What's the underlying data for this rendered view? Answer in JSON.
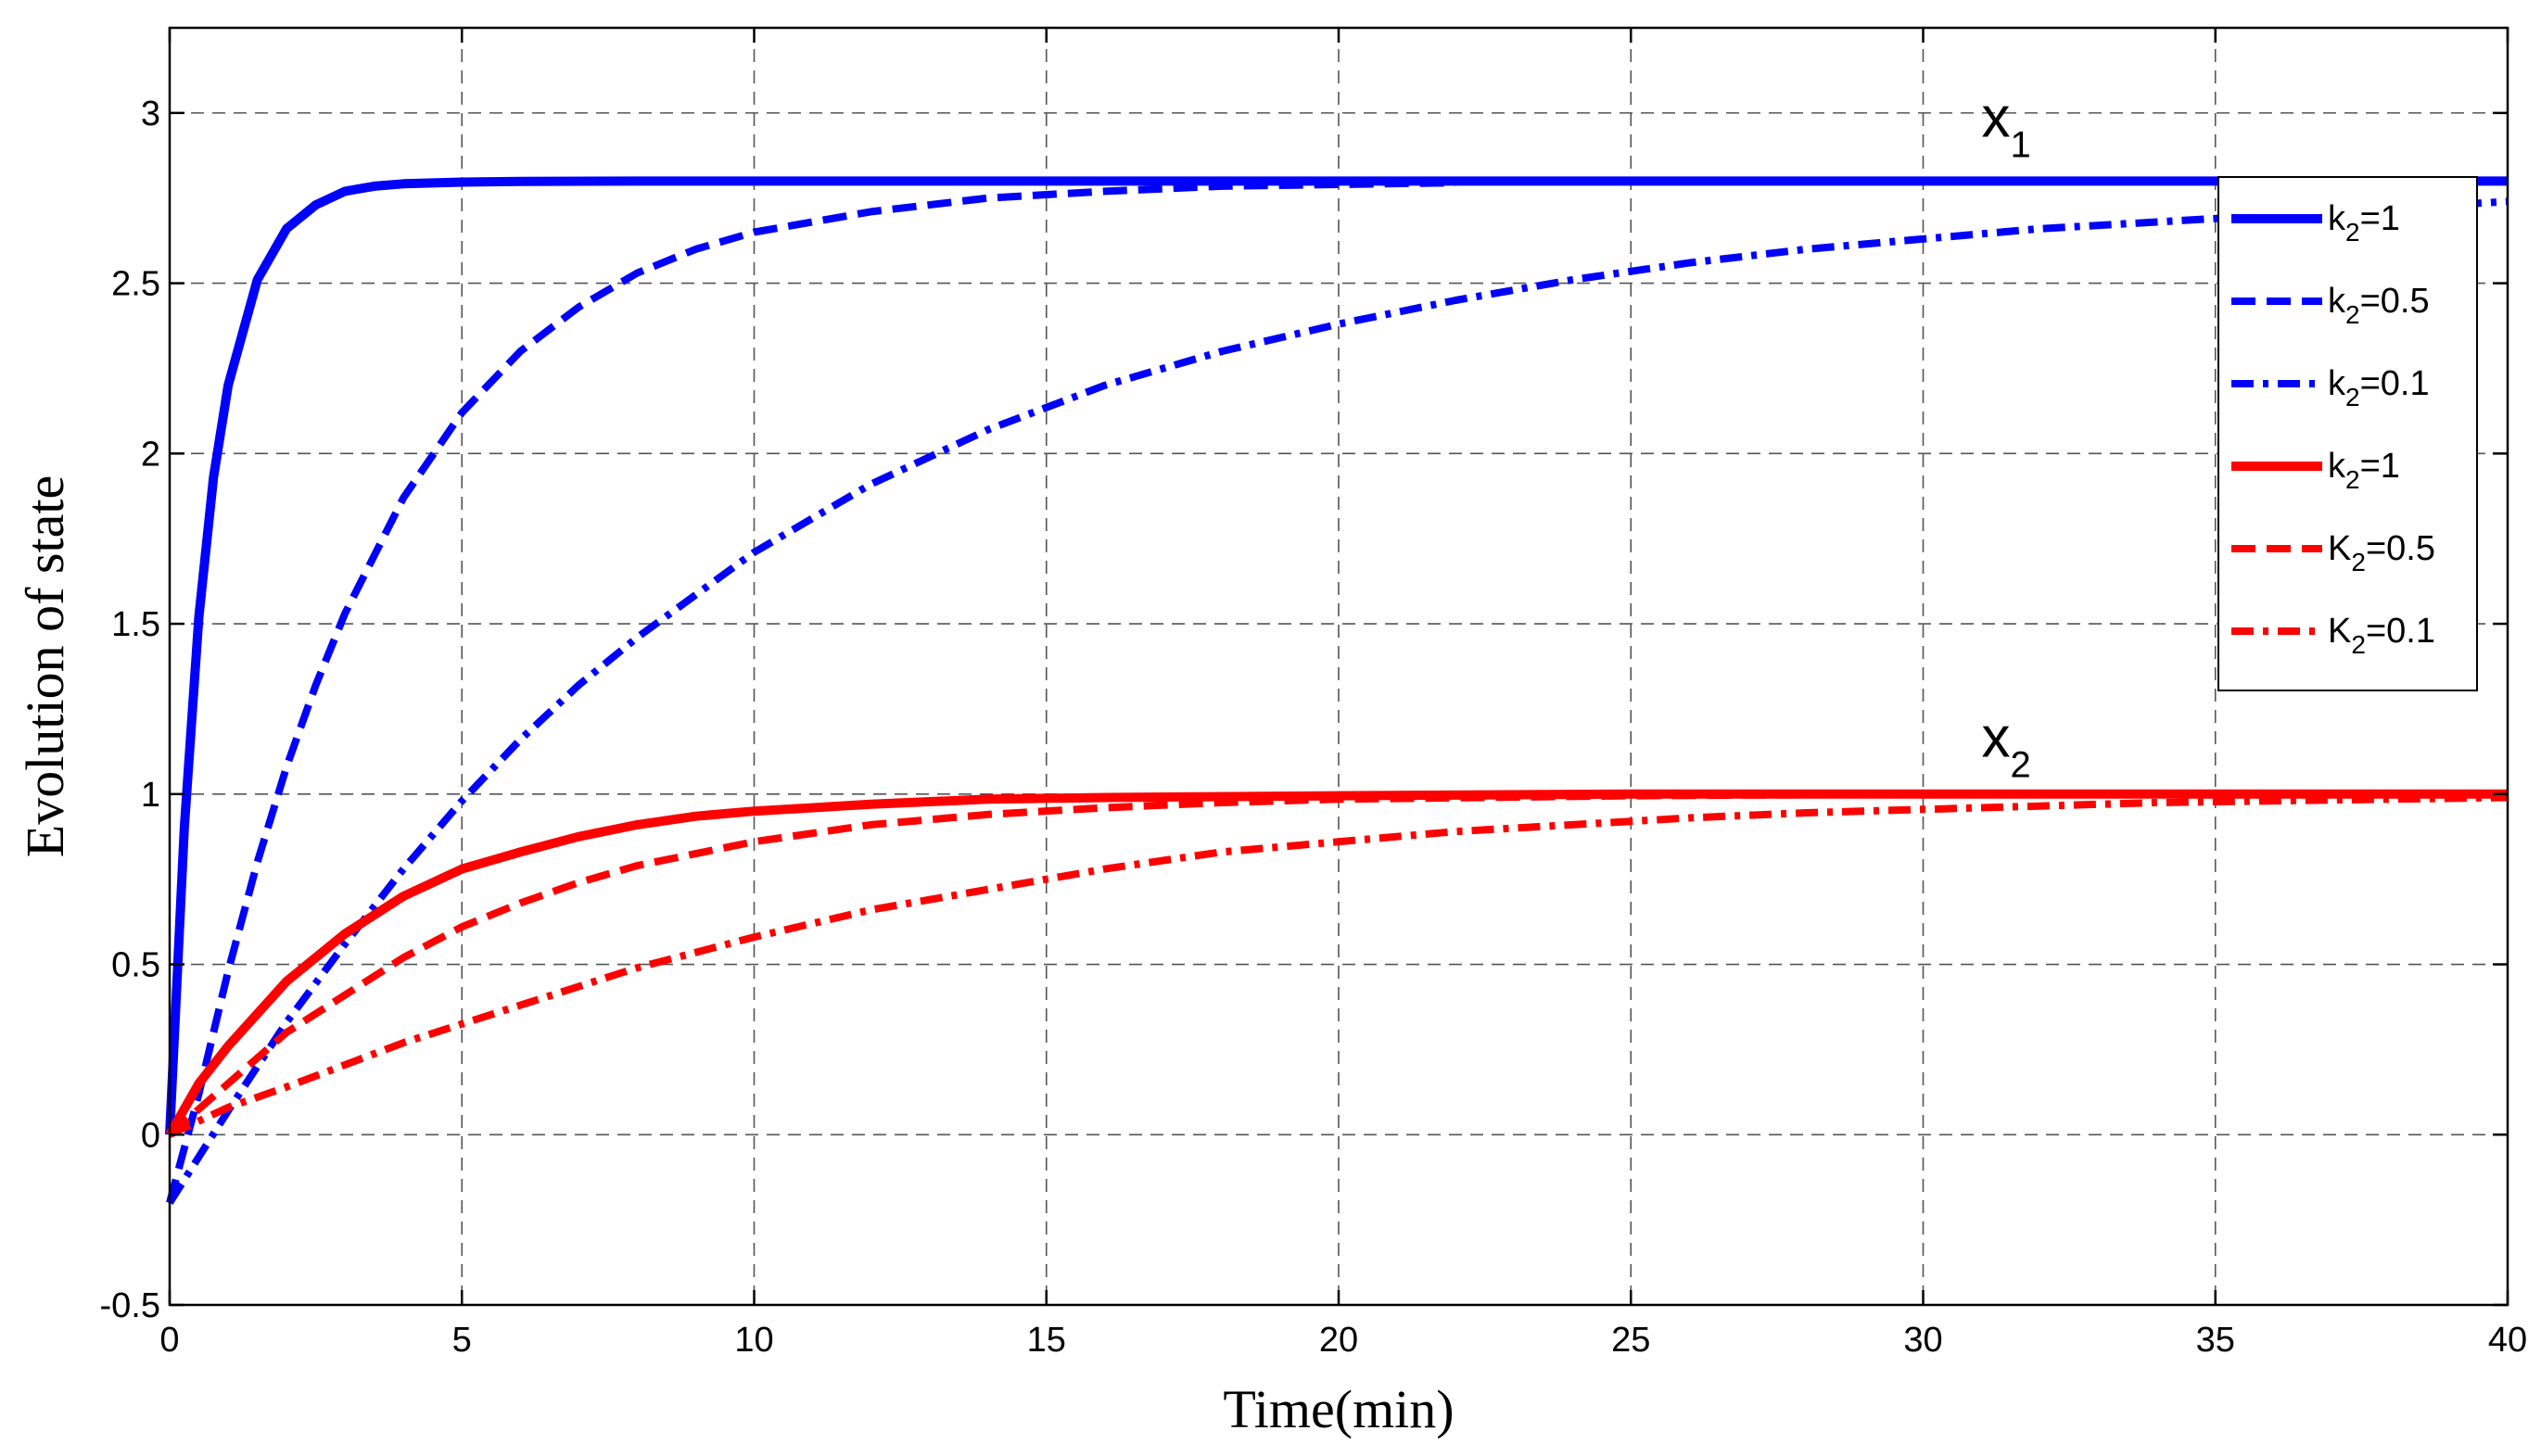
{
  "chart_data": {
    "type": "line",
    "title": "",
    "xlabel": "Time(min)",
    "ylabel": "Evolution of state",
    "xlim": [
      0,
      40
    ],
    "ylim": [
      -0.5,
      3.25
    ],
    "xticks": [
      0,
      5,
      10,
      15,
      20,
      25,
      30,
      35,
      40
    ],
    "xtick_labels": [
      "0",
      "5",
      "10",
      "15",
      "20",
      "25",
      "30",
      "35",
      "40"
    ],
    "yticks": [
      -0.5,
      0,
      0.5,
      1,
      1.5,
      2,
      2.5,
      3
    ],
    "ytick_labels": [
      "-0.5",
      "0",
      "0.5",
      "1",
      "1.5",
      "2",
      "2.5",
      "3"
    ],
    "grid": true,
    "legend_position": "top-right",
    "annotations": [
      {
        "base": "x",
        "sub": "1",
        "x": 31.0,
        "y": 2.93
      },
      {
        "base": "x",
        "sub": "2",
        "x": 31.0,
        "y": 1.11
      }
    ],
    "series": [
      {
        "name_base": "k",
        "name_sub": "2",
        "name_rest": "=1",
        "color": "#0000ff",
        "dash": "solid",
        "x": [
          0,
          0.25,
          0.5,
          0.75,
          1,
          1.5,
          2,
          2.5,
          3,
          3.5,
          4,
          5,
          6,
          8,
          10,
          15,
          20,
          25,
          30,
          35,
          40
        ],
        "y": [
          0,
          0.9,
          1.52,
          1.93,
          2.2,
          2.51,
          2.66,
          2.73,
          2.77,
          2.785,
          2.792,
          2.797,
          2.799,
          2.8,
          2.8,
          2.8,
          2.8,
          2.8,
          2.8,
          2.8,
          2.8
        ]
      },
      {
        "name_base": "k",
        "name_sub": "2",
        "name_rest": "=0.5",
        "color": "#0000ff",
        "dash": "dash",
        "x": [
          0,
          0.5,
          1,
          1.5,
          2,
          2.5,
          3,
          4,
          5,
          6,
          7,
          8,
          9,
          10,
          12,
          14,
          16,
          18,
          20,
          22
        ],
        "y": [
          -0.2,
          0.12,
          0.48,
          0.8,
          1.08,
          1.32,
          1.53,
          1.87,
          2.12,
          2.3,
          2.43,
          2.53,
          2.6,
          2.65,
          2.71,
          2.75,
          2.77,
          2.785,
          2.79,
          2.795
        ]
      },
      {
        "name_base": "k",
        "name_sub": "2",
        "name_rest": "=0.1",
        "color": "#0000ff",
        "dash": "dashdot",
        "x": [
          0,
          1,
          2,
          3,
          4,
          5,
          6,
          7,
          8,
          10,
          12,
          14,
          16,
          18,
          20,
          22,
          24,
          26,
          28,
          30,
          32,
          34,
          36,
          38,
          40
        ],
        "y": [
          -0.2,
          0.07,
          0.33,
          0.56,
          0.78,
          0.98,
          1.16,
          1.32,
          1.46,
          1.71,
          1.91,
          2.07,
          2.2,
          2.3,
          2.38,
          2.45,
          2.51,
          2.56,
          2.6,
          2.63,
          2.66,
          2.68,
          2.7,
          2.72,
          2.74
        ]
      },
      {
        "name_base": "k",
        "name_sub": "2",
        "name_rest": "=1",
        "color": "#ff0000",
        "dash": "solid",
        "x": [
          0,
          0.5,
          1,
          2,
          3,
          4,
          5,
          6,
          7,
          8,
          9,
          10,
          12,
          14,
          16,
          20,
          25,
          30,
          35,
          40
        ],
        "y": [
          0,
          0.15,
          0.26,
          0.45,
          0.59,
          0.7,
          0.78,
          0.83,
          0.875,
          0.91,
          0.935,
          0.95,
          0.97,
          0.985,
          0.99,
          0.995,
          1.0,
          1.0,
          1.0,
          1.0
        ]
      },
      {
        "name_base": "K",
        "name_sub": "2",
        "name_rest": "=0.5",
        "color": "#ff0000",
        "dash": "dash",
        "x": [
          0,
          1,
          2,
          3,
          4,
          5,
          6,
          7,
          8,
          10,
          12,
          14,
          16,
          18,
          20,
          25,
          30,
          35,
          40
        ],
        "y": [
          0,
          0.15,
          0.3,
          0.41,
          0.52,
          0.61,
          0.68,
          0.74,
          0.79,
          0.86,
          0.91,
          0.94,
          0.96,
          0.975,
          0.985,
          0.995,
          1.0,
          1.0,
          1.0
        ]
      },
      {
        "name_base": "K",
        "name_sub": "2",
        "name_rest": "=0.1",
        "color": "#ff0000",
        "dash": "dashdot",
        "x": [
          0,
          1,
          2,
          4,
          6,
          8,
          10,
          12,
          14,
          16,
          18,
          20,
          22,
          24,
          26,
          28,
          30,
          32,
          34,
          36,
          38,
          40
        ],
        "y": [
          0,
          0.08,
          0.14,
          0.27,
          0.38,
          0.49,
          0.58,
          0.66,
          0.72,
          0.78,
          0.83,
          0.86,
          0.89,
          0.91,
          0.93,
          0.945,
          0.955,
          0.965,
          0.975,
          0.98,
          0.985,
          0.99
        ]
      }
    ]
  }
}
